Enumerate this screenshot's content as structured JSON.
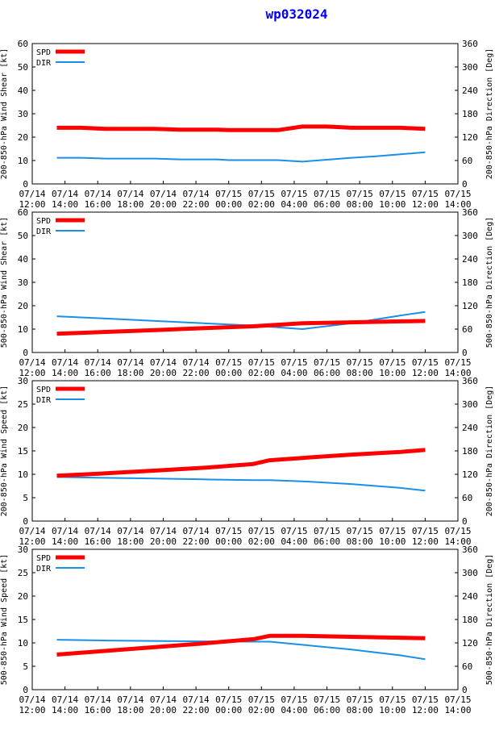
{
  "title": "wp032024",
  "colors": {
    "spd": "#ff0000",
    "dir": "#1a8fe8",
    "axis": "#000000",
    "title": "#0000ff"
  },
  "legend": {
    "spd": "SPD",
    "dir": "DIR"
  },
  "x_ticks": [
    [
      "07/14",
      "12:00"
    ],
    [
      "07/14",
      "14:00"
    ],
    [
      "07/14",
      "16:00"
    ],
    [
      "07/14",
      "18:00"
    ],
    [
      "07/14",
      "20:00"
    ],
    [
      "07/14",
      "22:00"
    ],
    [
      "07/15",
      "00:00"
    ],
    [
      "07/15",
      "02:00"
    ],
    [
      "07/15",
      "04:00"
    ],
    [
      "07/15",
      "06:00"
    ],
    [
      "07/15",
      "08:00"
    ],
    [
      "07/15",
      "10:00"
    ],
    [
      "07/15",
      "12:00"
    ],
    [
      "07/15",
      "14:00"
    ]
  ],
  "chart_data": [
    {
      "type": "line",
      "ylabel": "200-850-hPa Wind Shear [kt]",
      "y2label": "200-850-hPa Direction [Deg]",
      "ylim": [
        0,
        60
      ],
      "yticks": [
        0,
        10,
        20,
        30,
        40,
        50,
        60
      ],
      "y2lim": [
        0,
        360
      ],
      "y2ticks": [
        0,
        60,
        120,
        180,
        240,
        300,
        360
      ],
      "x": [
        1.5,
        3,
        4.5,
        6,
        7.5,
        9,
        10.5,
        11.3,
        12,
        13.5,
        15,
        16.5,
        18,
        19.5,
        21,
        22.5,
        24
      ],
      "series": [
        {
          "name": "SPD",
          "axis": "left",
          "values": [
            24,
            24,
            23.5,
            23.5,
            23.5,
            23.2,
            23.2,
            23.2,
            23,
            23,
            23,
            24.5,
            24.5,
            24,
            24,
            24,
            23.5
          ]
        },
        {
          "name": "DIR",
          "axis": "right",
          "values": [
            67,
            67,
            65,
            65,
            65,
            63,
            63,
            63,
            61,
            61,
            61,
            57,
            62,
            67,
            71,
            76,
            81
          ]
        }
      ]
    },
    {
      "type": "line",
      "ylabel": "500-850-hPa Wind Shear [kt]",
      "y2label": "500-850-hPa Direction [Deg]",
      "ylim": [
        0,
        60
      ],
      "yticks": [
        0,
        10,
        20,
        30,
        40,
        50,
        60
      ],
      "y2lim": [
        0,
        360
      ],
      "y2ticks": [
        0,
        60,
        120,
        180,
        240,
        300,
        360
      ],
      "x": [
        1.5,
        4.5,
        7.5,
        10.5,
        13.5,
        16.5,
        19.5,
        22.5,
        24
      ],
      "series": [
        {
          "name": "SPD",
          "axis": "left",
          "values": [
            8,
            8.8,
            9.6,
            10.4,
            11.2,
            12.5,
            12.9,
            13.3,
            13.5
          ]
        },
        {
          "name": "DIR",
          "axis": "right",
          "values": [
            93,
            87,
            81,
            75,
            69,
            60,
            75,
            95,
            104
          ]
        }
      ]
    },
    {
      "type": "line",
      "ylabel": "200-850-hPa Wind Speed [kt]",
      "y2label": "200-850-hPa Direction [Deg]",
      "ylim": [
        0,
        30
      ],
      "yticks": [
        0,
        5,
        10,
        15,
        20,
        25,
        30
      ],
      "y2lim": [
        0,
        360
      ],
      "y2ticks": [
        0,
        60,
        120,
        180,
        240,
        300,
        360
      ],
      "x": [
        1.5,
        4.5,
        7.5,
        10.5,
        13.5,
        14.5,
        16.5,
        19.5,
        22.5,
        24
      ],
      "series": [
        {
          "name": "SPD",
          "axis": "left",
          "values": [
            9.7,
            10.2,
            10.8,
            11.4,
            12.2,
            13,
            13.5,
            14.2,
            14.8,
            15.2
          ]
        },
        {
          "name": "DIR",
          "axis": "right",
          "values": [
            113,
            111,
            109,
            107,
            105,
            105,
            102,
            95,
            85,
            78
          ]
        }
      ]
    },
    {
      "type": "line",
      "ylabel": "500-850-hPa Wind Speed [kt]",
      "y2label": "500-850-hPa Direction [Deg]",
      "ylim": [
        0,
        30
      ],
      "yticks": [
        0,
        5,
        10,
        15,
        20,
        25,
        30
      ],
      "y2lim": [
        0,
        360
      ],
      "y2ticks": [
        0,
        60,
        120,
        180,
        240,
        300,
        360
      ],
      "x": [
        1.5,
        4.5,
        7.5,
        10.5,
        13.5,
        14.5,
        16.5,
        19.5,
        22.5,
        24
      ],
      "series": [
        {
          "name": "SPD",
          "axis": "left",
          "values": [
            7.5,
            8.3,
            9.1,
            9.9,
            10.8,
            11.5,
            11.5,
            11.3,
            11.1,
            11
          ]
        },
        {
          "name": "DIR",
          "axis": "right",
          "values": [
            128,
            126,
            125,
            124,
            123,
            123,
            115,
            103,
            88,
            78
          ]
        }
      ]
    }
  ]
}
